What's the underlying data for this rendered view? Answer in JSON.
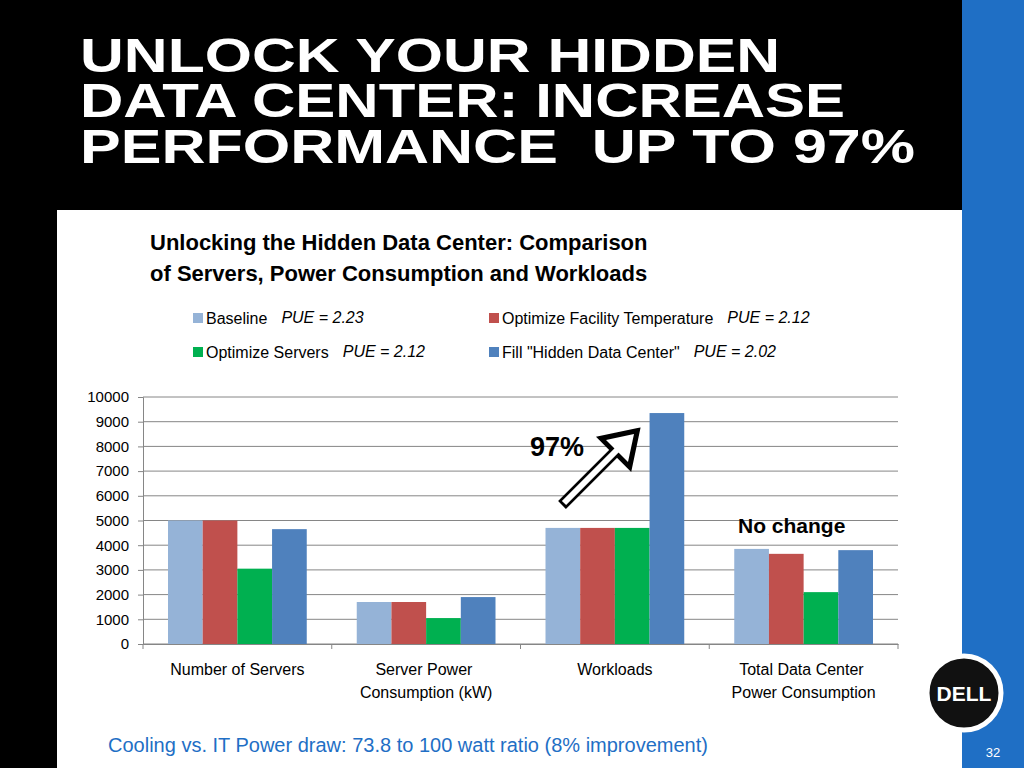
{
  "slide": {
    "title": [
      "UNLOCK YOUR HIDDEN",
      "DATA CENTER: INCREASE",
      "PERFORMANCE  UP TO 97%"
    ],
    "caption": "Cooling vs. IT Power draw: 73.8 to 100 watt ratio (8% improvement)",
    "logo": "DELL",
    "page_number": "32"
  },
  "chart_data": {
    "type": "bar",
    "title": "Unlocking the Hidden Data Center: Comparison of Servers, Power Consumption and Workloads",
    "categories": [
      "Number of Servers",
      "Server Power Consumption (kW)",
      "Workloads",
      "Total Data Center Power Consumption"
    ],
    "series": [
      {
        "name": "Baseline",
        "note": "PUE = 2.23",
        "color": "#95b3d7",
        "values": [
          5000,
          1700,
          4700,
          3850
        ]
      },
      {
        "name": "Optimize Facility Temperature",
        "note": "PUE = 2.12",
        "color": "#c0504d",
        "values": [
          5000,
          1700,
          4700,
          3650
        ]
      },
      {
        "name": "Optimize Servers",
        "note": "PUE = 2.12",
        "color": "#00b050",
        "values": [
          3050,
          1050,
          4700,
          2100
        ]
      },
      {
        "name": "Fill \"Hidden Data Center\"",
        "note": "PUE = 2.02",
        "color": "#4f81bd",
        "values": [
          4650,
          1900,
          9350,
          3800
        ]
      }
    ],
    "ylim": [
      0,
      10000
    ],
    "yticks": [
      0,
      1000,
      2000,
      3000,
      4000,
      5000,
      6000,
      7000,
      8000,
      9000,
      10000
    ],
    "grid": true,
    "legend": "top",
    "annotations": [
      {
        "text": "97%"
      },
      {
        "text": "No change"
      }
    ]
  }
}
